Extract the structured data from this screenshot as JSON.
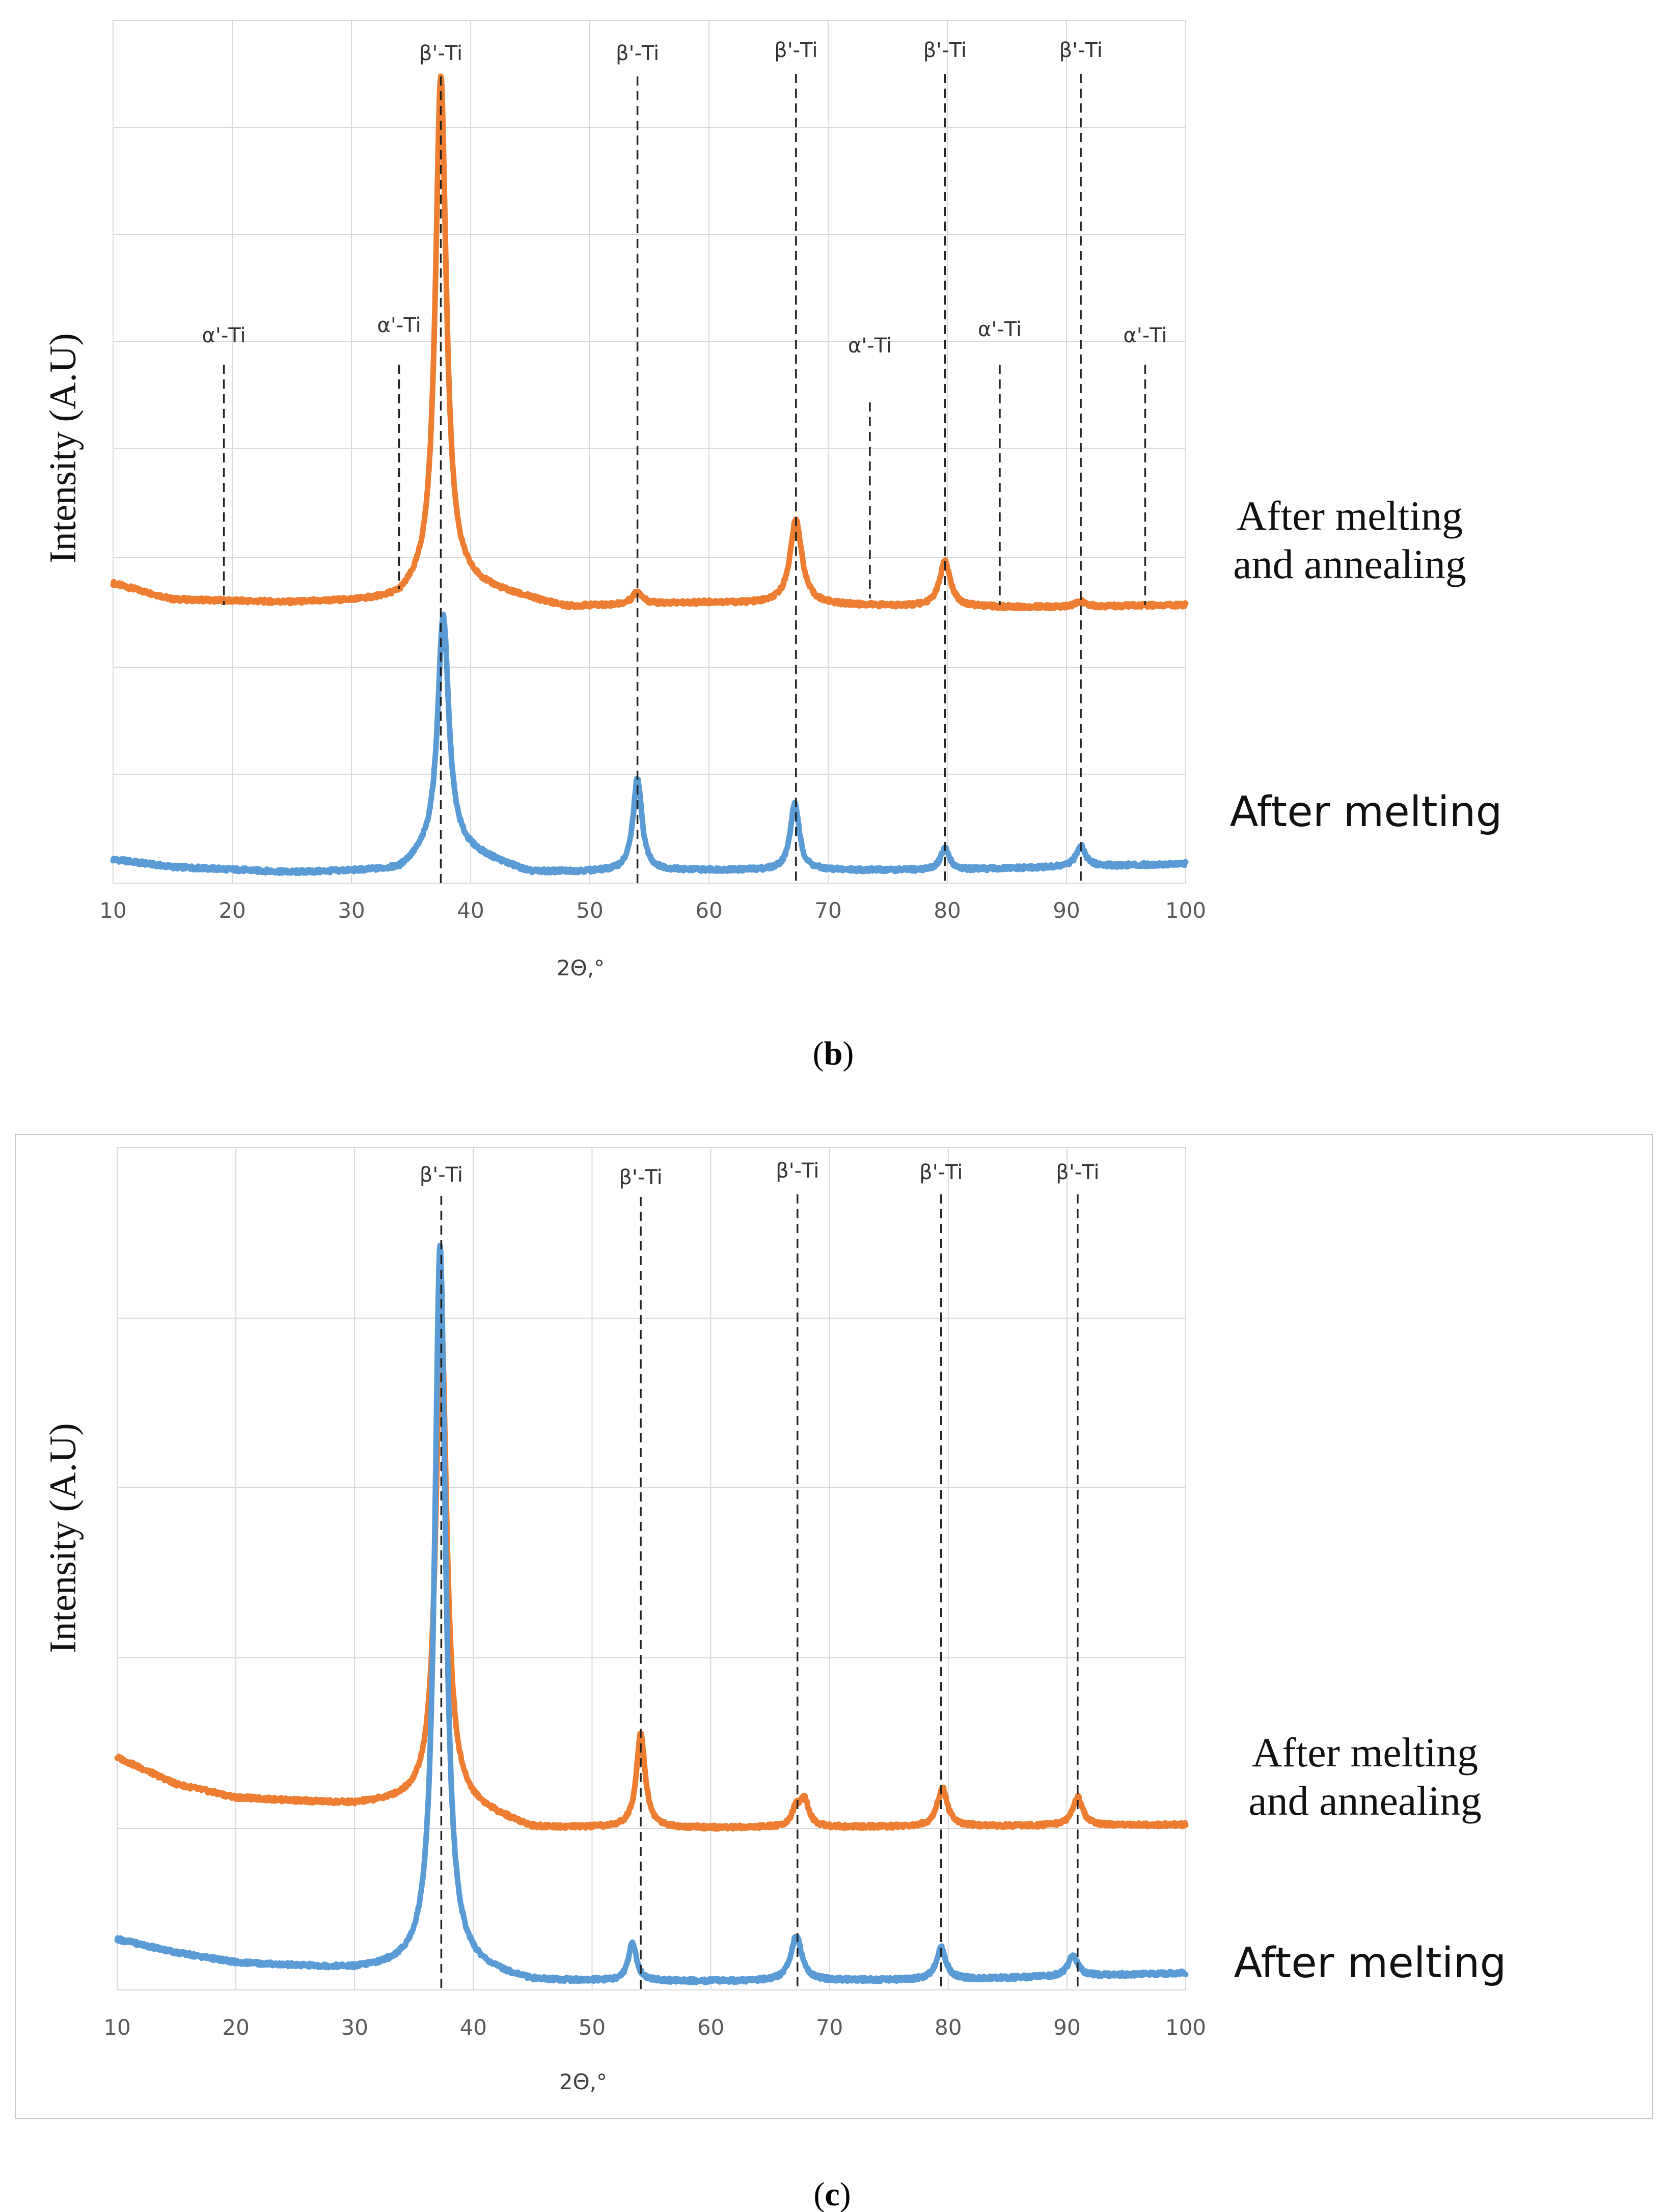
{
  "chart_data": [
    {
      "type": "line",
      "panel": "b",
      "caption": {
        "open": "(",
        "letter": "b",
        "close": ")"
      },
      "xlabel": "2Θ,°",
      "ylabel": "Intensity (A.U)",
      "xlim": [
        10,
        100
      ],
      "ylim": [
        0,
        8
      ],
      "x_ticks": [
        10,
        20,
        30,
        40,
        50,
        60,
        70,
        80,
        90,
        100
      ],
      "grid": true,
      "series": [
        {
          "name": "After melting and annealing",
          "label_lines": [
            "After melting",
            "and annealing"
          ],
          "color": "#ED7D31",
          "baseline": [
            [
              10,
              2.78
            ],
            [
              15,
              2.63
            ],
            [
              25,
              2.6
            ],
            [
              34,
              2.62
            ],
            [
              36,
              2.72
            ],
            [
              38,
              2.8
            ],
            [
              48,
              2.56
            ],
            [
              60,
              2.6
            ],
            [
              70,
              2.58
            ],
            [
              80,
              2.56
            ],
            [
              90,
              2.56
            ],
            [
              100,
              2.58
            ]
          ],
          "peaks": [
            {
              "x": 37.5,
              "height": 4.7,
              "width": 0.55
            },
            {
              "x": 54.0,
              "height": 0.12,
              "width": 0.5
            },
            {
              "x": 67.3,
              "height": 0.78,
              "width": 0.6
            },
            {
              "x": 79.8,
              "height": 0.42,
              "width": 0.55
            },
            {
              "x": 91.2,
              "height": 0.05,
              "width": 0.5
            }
          ]
        },
        {
          "name": "After melting",
          "label_lines": [
            "After melting"
          ],
          "color": "#5B9BD5",
          "baseline": [
            [
              10,
              0.22
            ],
            [
              15,
              0.15
            ],
            [
              25,
              0.1
            ],
            [
              34,
              0.12
            ],
            [
              36,
              0.25
            ],
            [
              38,
              0.35
            ],
            [
              45,
              0.1
            ],
            [
              60,
              0.12
            ],
            [
              80,
              0.12
            ],
            [
              100,
              0.18
            ]
          ],
          "peaks": [
            {
              "x": 37.7,
              "height": 2.15,
              "width": 0.55
            },
            {
              "x": 54.0,
              "height": 0.85,
              "width": 0.45
            },
            {
              "x": 67.2,
              "height": 0.62,
              "width": 0.45
            },
            {
              "x": 79.8,
              "height": 0.2,
              "width": 0.45
            },
            {
              "x": 91.2,
              "height": 0.2,
              "width": 0.45
            }
          ]
        }
      ],
      "annotations": [
        {
          "text": "β'-Ti",
          "x": 37.5
        },
        {
          "text": "β'-Ti",
          "x": 54.0
        },
        {
          "text": "β'-Ti",
          "x": 67.3
        },
        {
          "text": "β'-Ti",
          "x": 79.8
        },
        {
          "text": "β'-Ti",
          "x": 91.2
        },
        {
          "text": "α'-Ti",
          "x": 19.3
        },
        {
          "text": "α'-Ti",
          "x": 34.0
        },
        {
          "text": "α'-Ti",
          "x": 73.5
        },
        {
          "text": "α'-Ti",
          "x": 84.4
        },
        {
          "text": "α'-Ti",
          "x": 96.6
        }
      ]
    },
    {
      "type": "line",
      "panel": "c",
      "caption": {
        "open": "(",
        "letter": "c",
        "close": ")"
      },
      "xlabel": "2Θ,°",
      "ylabel": "Intensity (A.U)",
      "xlim": [
        10,
        100
      ],
      "ylim": [
        0,
        5
      ],
      "x_ticks": [
        10,
        20,
        30,
        40,
        50,
        60,
        70,
        80,
        90,
        100
      ],
      "grid": true,
      "series": [
        {
          "name": "After melting and annealing",
          "label_lines": [
            "After melting",
            "and annealing"
          ],
          "color": "#ED7D31",
          "baseline": [
            [
              10,
              1.38
            ],
            [
              15,
              1.22
            ],
            [
              20,
              1.14
            ],
            [
              30,
              1.1
            ],
            [
              35,
              1.12
            ],
            [
              38,
              1.12
            ],
            [
              45,
              0.96
            ],
            [
              60,
              0.96
            ],
            [
              80,
              0.97
            ],
            [
              100,
              0.98
            ]
          ],
          "peaks": [
            {
              "x": 37.3,
              "height": 2.85,
              "width": 0.55
            },
            {
              "x": 54.1,
              "height": 0.56,
              "width": 0.45
            },
            {
              "x": 67.2,
              "height": 0.1,
              "width": 0.45
            },
            {
              "x": 67.9,
              "height": 0.15,
              "width": 0.45
            },
            {
              "x": 79.5,
              "height": 0.23,
              "width": 0.5
            },
            {
              "x": 90.9,
              "height": 0.17,
              "width": 0.5
            }
          ]
        },
        {
          "name": "After melting",
          "label_lines": [
            "After melting"
          ],
          "color": "#5B9BD5",
          "baseline": [
            [
              10,
              0.3
            ],
            [
              15,
              0.22
            ],
            [
              20,
              0.16
            ],
            [
              30,
              0.12
            ],
            [
              35,
              0.13
            ],
            [
              38,
              0.14
            ],
            [
              45,
              0.05
            ],
            [
              60,
              0.05
            ],
            [
              80,
              0.06
            ],
            [
              100,
              0.1
            ]
          ],
          "peaks": [
            {
              "x": 37.2,
              "height": 4.28,
              "width": 0.55
            },
            {
              "x": 53.4,
              "height": 0.23,
              "width": 0.4
            },
            {
              "x": 67.2,
              "height": 0.27,
              "width": 0.55
            },
            {
              "x": 79.4,
              "height": 0.19,
              "width": 0.5
            },
            {
              "x": 90.5,
              "height": 0.12,
              "width": 0.5
            }
          ]
        }
      ],
      "annotations": [
        {
          "text": "β'-Ti",
          "x": 37.3
        },
        {
          "text": "β'-Ti",
          "x": 54.1
        },
        {
          "text": "β'-Ti",
          "x": 67.3
        },
        {
          "text": "β'-Ti",
          "x": 79.4
        },
        {
          "text": "β'-Ti",
          "x": 90.9
        }
      ]
    }
  ]
}
